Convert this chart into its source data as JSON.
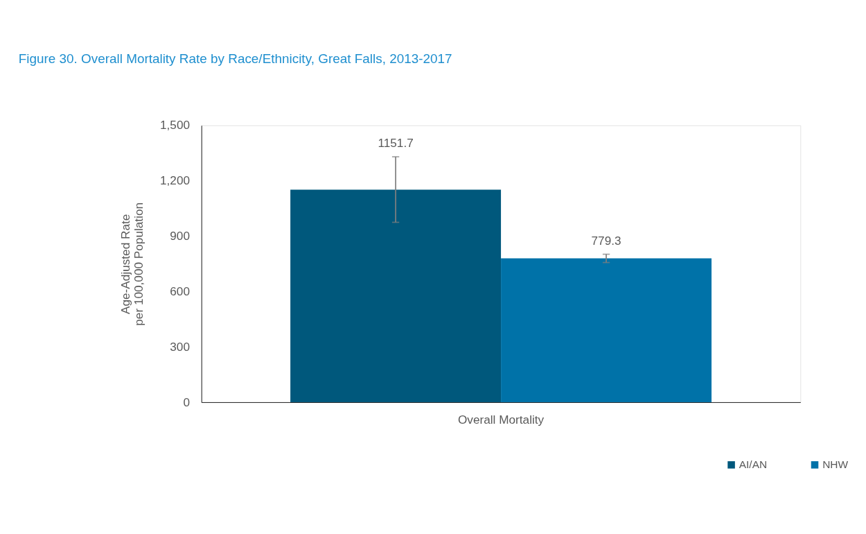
{
  "chart_data": {
    "type": "bar",
    "title": "Figure 30. Overall Mortality Rate by Race/Ethnicity, Great Falls, 2013-2017",
    "ylabel": "Age-Adjusted Rate\nper 100,000 Population",
    "categories": [
      "Overall Mortality"
    ],
    "series": [
      {
        "name": "AI/AN",
        "color": "#00587c",
        "values": [
          1151.7
        ],
        "errors": [
          [
            975,
            1330
          ]
        ]
      },
      {
        "name": "NHW",
        "color": "#0072a8",
        "values": [
          779.3
        ],
        "errors": [
          [
            757,
            802
          ]
        ]
      }
    ],
    "ylim": [
      0,
      1500
    ],
    "yticks": [
      0,
      300,
      600,
      900,
      {
        "value": 1200,
        "label": "1,200"
      },
      {
        "value": 1500,
        "label": "1,500"
      }
    ],
    "data_labels": true,
    "grid": false,
    "legend": "bottom right"
  }
}
